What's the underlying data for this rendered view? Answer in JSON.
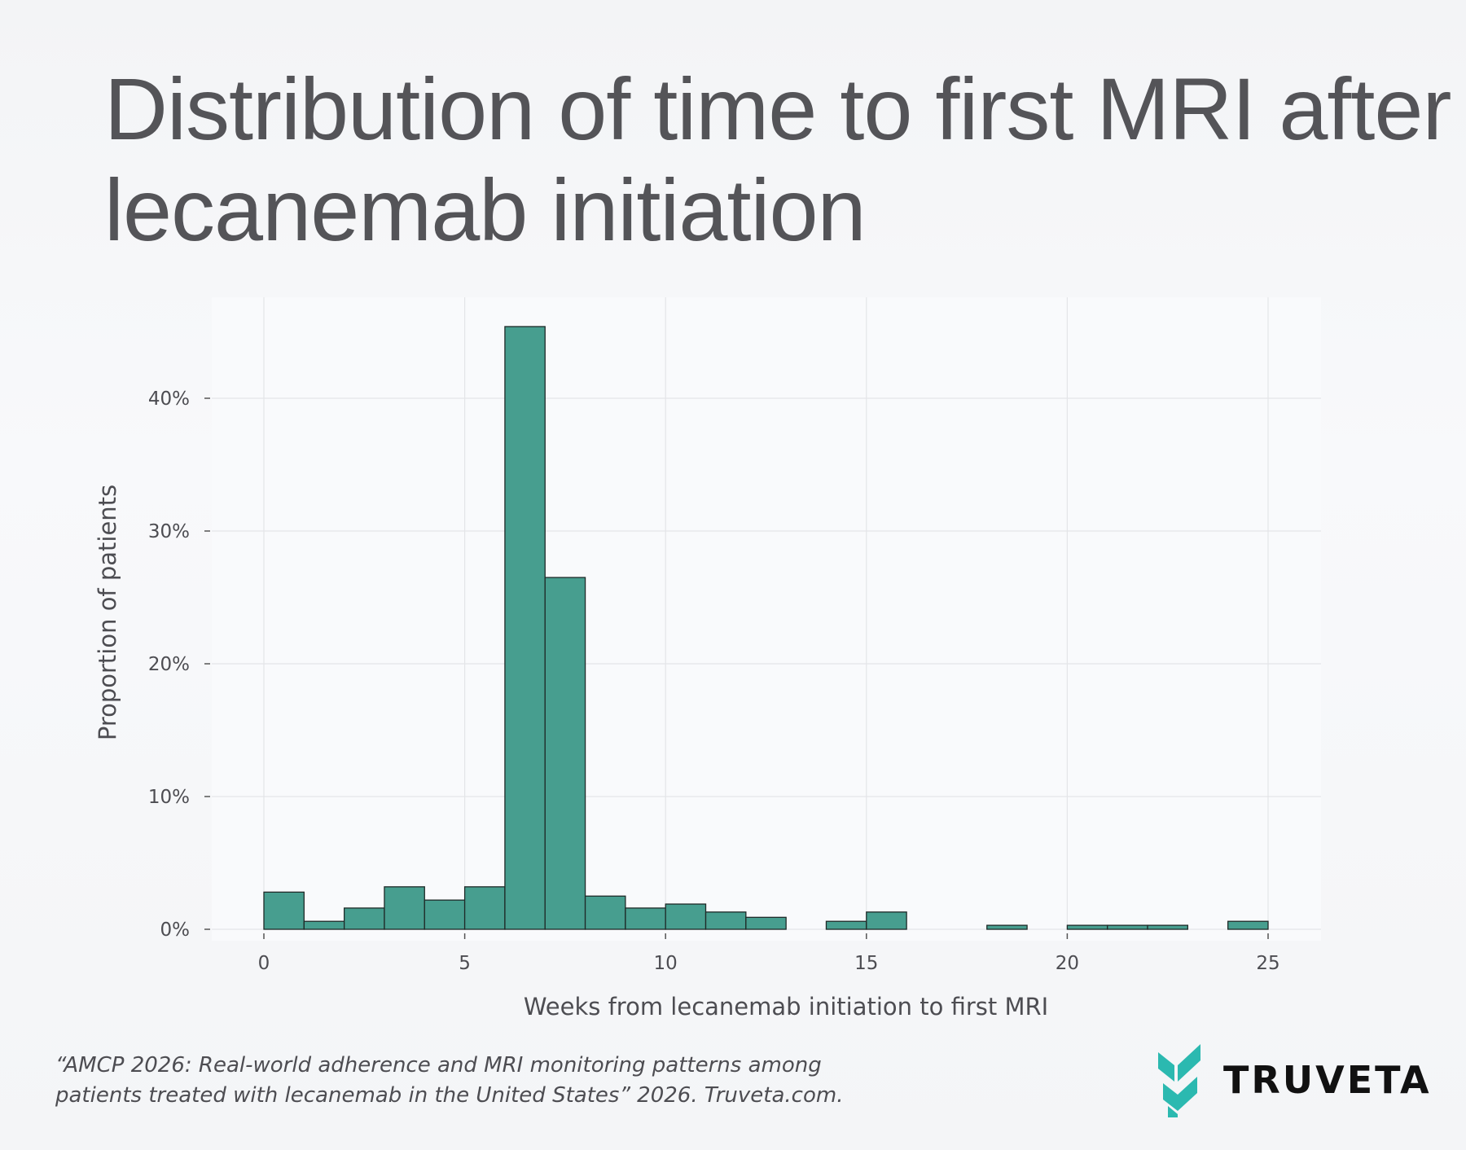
{
  "title": "Distribution of time to first MRI after lecanemab initiation",
  "citation": "“AMCP 2026: Real-world adherence and MRI monitoring patterns among patients treated with lecanemab in the United States” 2026. Truveta.com.",
  "logo": {
    "text": "TRUVETA",
    "accent": "#2bb9b0"
  },
  "chart_data": {
    "type": "bar",
    "subtype": "histogram",
    "xlabel": "Weeks from lecanemab initiation to first MRI",
    "ylabel": "Proportion of patients",
    "xlim": [
      -1.5,
      26.5
    ],
    "ylim": [
      0,
      48
    ],
    "x_ticks": [
      0,
      5,
      10,
      15,
      20,
      25
    ],
    "y_ticks": [
      0,
      10,
      20,
      30,
      40
    ],
    "y_tick_labels": [
      "0%",
      "10%",
      "20%",
      "30%",
      "40%"
    ],
    "grid": true,
    "bar_color": "#479e8f",
    "edge_color": "#1f2a28",
    "bin_width": 1,
    "bins": [
      {
        "start": 0,
        "value": 2.8
      },
      {
        "start": 1,
        "value": 0.6
      },
      {
        "start": 2,
        "value": 1.6
      },
      {
        "start": 3,
        "value": 3.2
      },
      {
        "start": 4,
        "value": 2.2
      },
      {
        "start": 5,
        "value": 3.2
      },
      {
        "start": 6,
        "value": 45.4
      },
      {
        "start": 7,
        "value": 26.5
      },
      {
        "start": 8,
        "value": 2.5
      },
      {
        "start": 9,
        "value": 1.6
      },
      {
        "start": 10,
        "value": 1.9
      },
      {
        "start": 11,
        "value": 1.3
      },
      {
        "start": 12,
        "value": 0.9
      },
      {
        "start": 14,
        "value": 0.6
      },
      {
        "start": 15,
        "value": 1.3
      },
      {
        "start": 18,
        "value": 0.3
      },
      {
        "start": 20,
        "value": 0.3
      },
      {
        "start": 21,
        "value": 0.3
      },
      {
        "start": 22,
        "value": 0.3
      },
      {
        "start": 24,
        "value": 0.6
      }
    ]
  }
}
